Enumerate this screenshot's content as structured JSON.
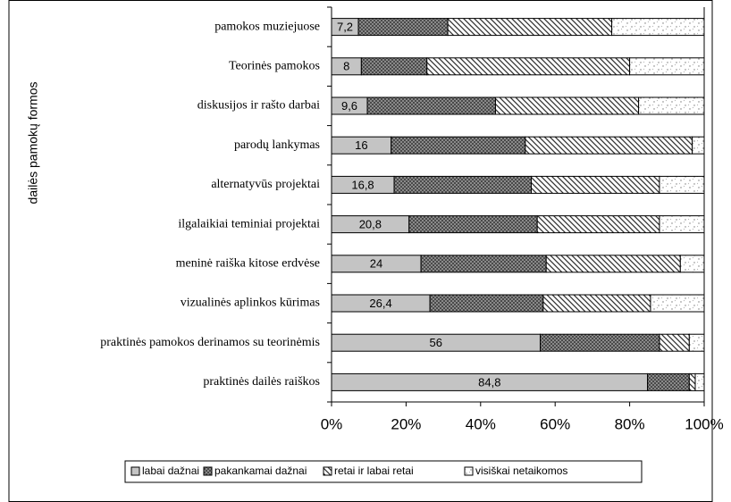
{
  "chart_data": {
    "type": "stacked-bar-horizontal",
    "y_axis_label": "dailės pamokų formos",
    "categories": [
      "pamokos muziejuose",
      "Teorinės pamokos",
      "diskusijos ir rašto darbai",
      "parodų lankymas",
      "alternatyvūs projektai",
      "ilgalaikiai teminiai projektai",
      "meninė raiška kitose erdvėse",
      "vizualinės aplinkos kūrimas",
      "praktinės pamokos derinamos su teorinėmis",
      "praktinės dailės raiškos"
    ],
    "series": [
      {
        "name": "labai dažnai",
        "values": [
          7.2,
          8,
          9.6,
          16,
          16.8,
          20.8,
          24,
          26.4,
          56,
          84.8
        ],
        "value_labels": [
          "7,2",
          "8",
          "9,6",
          "16",
          "16,8",
          "20,8",
          "24",
          "26,4",
          "56",
          "84,8"
        ]
      },
      {
        "name": "pakankamai dažnai",
        "values": [
          24,
          17.6,
          34.4,
          36,
          36.8,
          34.4,
          33.6,
          30.4,
          32,
          11.2
        ]
      },
      {
        "name": "retai ir labai retai",
        "values": [
          44,
          54.4,
          38.4,
          44.8,
          34.4,
          32.8,
          36,
          28.8,
          8,
          1.6
        ]
      },
      {
        "name": "visiškai netaikomos",
        "values": [
          24.8,
          20,
          17.6,
          3.2,
          12,
          12,
          6.4,
          14.4,
          4,
          2.4
        ]
      }
    ],
    "xlim": [
      0,
      100
    ],
    "xticks": [
      {
        "value": 0,
        "label": "0%"
      },
      {
        "value": 20,
        "label": "20%"
      },
      {
        "value": 40,
        "label": "40%"
      },
      {
        "value": 60,
        "label": "60%"
      },
      {
        "value": 80,
        "label": "80%"
      },
      {
        "value": 100,
        "label": "100%"
      }
    ],
    "legend": "bottom"
  }
}
